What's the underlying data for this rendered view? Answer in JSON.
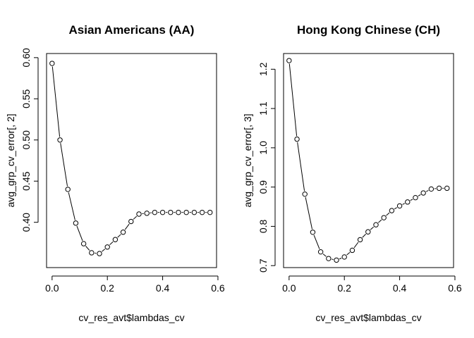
{
  "chart_data": [
    {
      "type": "line",
      "title": "Asian Americans (AA)",
      "xlabel": "cv_res_avt$lambdas_cv",
      "ylabel": "avg_grp_cv_error[, 2]",
      "xlim": [
        -0.02,
        0.595
      ],
      "ylim": [
        0.345,
        0.605
      ],
      "xticks": [
        "0.0",
        "0.2",
        "0.4",
        "0.6"
      ],
      "yticks": [
        "0.40",
        "0.45",
        "0.50",
        "0.55",
        "0.60"
      ],
      "x": [
        0.0,
        0.0286,
        0.0571,
        0.0857,
        0.1143,
        0.1429,
        0.1714,
        0.2,
        0.2286,
        0.2571,
        0.2857,
        0.3143,
        0.3429,
        0.3714,
        0.4,
        0.4286,
        0.4571,
        0.4857,
        0.5143,
        0.5429,
        0.5714
      ],
      "y": [
        0.593,
        0.5,
        0.44,
        0.399,
        0.374,
        0.363,
        0.362,
        0.37,
        0.379,
        0.388,
        0.401,
        0.41,
        0.411,
        0.412,
        0.412,
        0.412,
        0.412,
        0.412,
        0.412,
        0.412,
        0.412
      ]
    },
    {
      "type": "line",
      "title": "Hong Kong Chinese (CH)",
      "xlabel": "cv_res_avt$lambdas_cv",
      "ylabel": "avg_grp_cv_error[, 3]",
      "xlim": [
        -0.02,
        0.595
      ],
      "ylim": [
        0.695,
        1.24
      ],
      "xticks": [
        "0.0",
        "0.2",
        "0.4",
        "0.6"
      ],
      "yticks": [
        "0.7",
        "0.8",
        "0.9",
        "1.0",
        "1.1",
        "1.2"
      ],
      "x": [
        0.0,
        0.0286,
        0.0571,
        0.0857,
        0.1143,
        0.1429,
        0.1714,
        0.2,
        0.2286,
        0.2571,
        0.2857,
        0.3143,
        0.3429,
        0.3714,
        0.4,
        0.4286,
        0.4571,
        0.4857,
        0.5143,
        0.5429,
        0.5714
      ],
      "y": [
        1.222,
        1.022,
        0.882,
        0.785,
        0.735,
        0.718,
        0.714,
        0.722,
        0.739,
        0.766,
        0.786,
        0.804,
        0.822,
        0.84,
        0.852,
        0.862,
        0.873,
        0.885,
        0.895,
        0.897,
        0.897
      ]
    }
  ]
}
